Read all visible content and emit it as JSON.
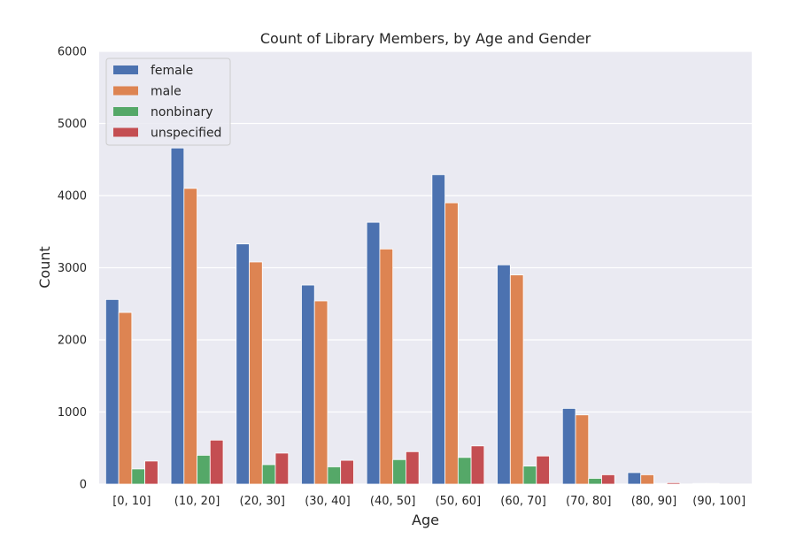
{
  "chart_data": {
    "type": "bar",
    "title": "Count of Library Members, by Age and Gender",
    "xlabel": "Age",
    "ylabel": "Count",
    "ylim": [
      0,
      6000
    ],
    "yticks": [
      0,
      1000,
      2000,
      3000,
      4000,
      5000,
      6000
    ],
    "grid": true,
    "legend_position": "top-left",
    "categories": [
      "[0, 10]",
      "(10, 20]",
      "(20, 30]",
      "(30, 40]",
      "(40, 50]",
      "(50, 60]",
      "(60, 70]",
      "(70, 80]",
      "(80, 90]",
      "(90, 100]"
    ],
    "series": [
      {
        "name": "female",
        "color": "#4c72b0",
        "values": [
          2560,
          4660,
          3330,
          2760,
          3630,
          4290,
          3040,
          1050,
          160,
          10
        ]
      },
      {
        "name": "male",
        "color": "#dd8452",
        "values": [
          2380,
          4100,
          3080,
          2540,
          3260,
          3900,
          2900,
          960,
          130,
          10
        ]
      },
      {
        "name": "nonbinary",
        "color": "#55a868",
        "values": [
          210,
          400,
          270,
          240,
          340,
          370,
          250,
          80,
          10,
          0
        ]
      },
      {
        "name": "unspecified",
        "color": "#c44e52",
        "values": [
          320,
          610,
          430,
          330,
          450,
          530,
          390,
          130,
          20,
          0
        ]
      }
    ]
  }
}
